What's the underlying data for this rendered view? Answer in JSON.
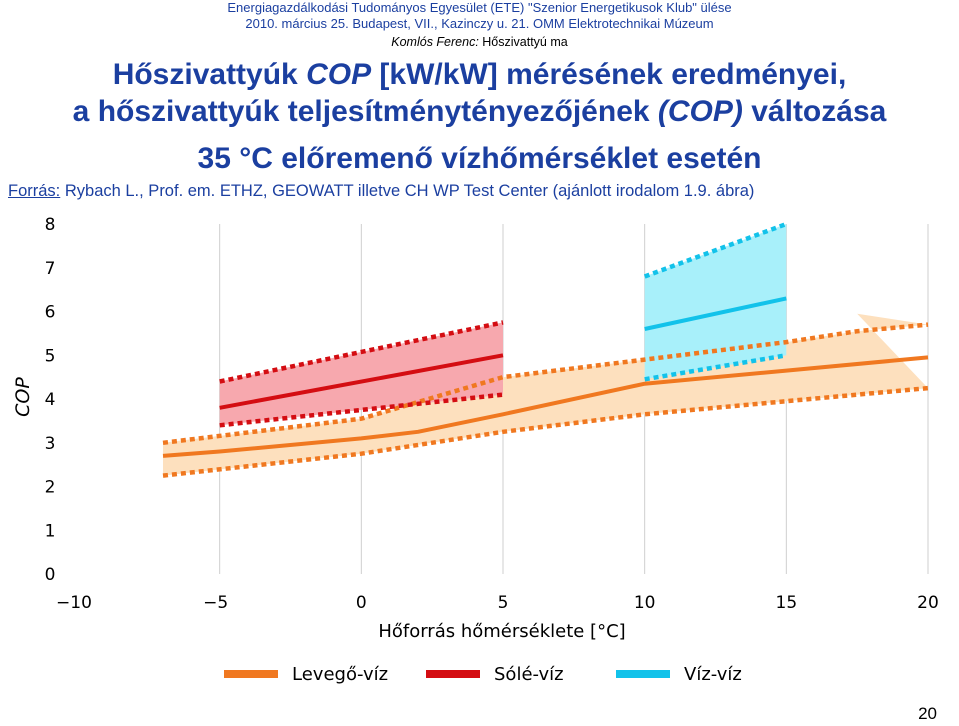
{
  "header": {
    "line1": "Energiagazdálkodási Tudományos Egyesület (ETE) \"Szenior Energetikusok Klub\" ülése",
    "line2": "2010. március 25. Budapest, VII., Kazinczy u. 21. OMM Elektrotechnikai Múzeum",
    "author": "Komlós Ferenc:",
    "topic": "Hőszivattyú ma"
  },
  "title": {
    "line1_a": "Hőszivattyúk ",
    "line1_b": "COP",
    "line1_c": " [kW/kW] mérésének eredményei,",
    "line2_a": "a hőszivattyúk teljesítménytényezőjének ",
    "line2_b": "(COP)",
    "line2_c": " változása",
    "line3": "35 °C előremenő vízhőmérséklet esetén"
  },
  "source": {
    "label": "Forrás:",
    "text": " Rybach L., Prof. em. ETHZ, GEOWATT illetve CH WP Test Center (ajánlott irodalom 1.9. ábra)"
  },
  "page_number": "20",
  "colors": {
    "levego": "#f07820",
    "levego_band": "#fde0be",
    "sole": "#d40d12",
    "sole_band": "#f7a8ae",
    "viz": "#12c2ea",
    "viz_band": "#a8f0fa"
  },
  "chart_data": {
    "type": "line",
    "xlabel": "Hőforrás hőmérséklete [°C]",
    "ylabel": "COP",
    "xlim": [
      -10,
      20
    ],
    "ylim": [
      0,
      8
    ],
    "x_ticks": [
      "−10",
      "−5",
      "0",
      "5",
      "10",
      "15",
      "20"
    ],
    "y_ticks": [
      "0",
      "1",
      "2",
      "3",
      "4",
      "5",
      "6",
      "7",
      "8"
    ],
    "grid": "vertical",
    "legend_position": "bottom",
    "series": [
      {
        "name": "Levegő-víz",
        "color_key": "levego",
        "mean": [
          [
            -7,
            2.7
          ],
          [
            -5,
            2.8
          ],
          [
            0,
            3.1
          ],
          [
            2,
            3.25
          ],
          [
            5,
            3.65
          ],
          [
            10,
            4.35
          ],
          [
            15,
            4.65
          ],
          [
            20,
            4.95
          ]
        ],
        "upper": [
          [
            -7,
            3.0
          ],
          [
            0,
            3.55
          ],
          [
            5,
            4.5
          ],
          [
            10,
            4.9
          ],
          [
            15,
            5.3
          ],
          [
            17.5,
            5.55
          ],
          [
            20,
            5.7
          ]
        ],
        "lower": [
          [
            -7,
            2.25
          ],
          [
            0,
            2.75
          ],
          [
            5,
            3.25
          ],
          [
            10,
            3.65
          ],
          [
            15,
            3.95
          ],
          [
            20,
            4.25
          ]
        ],
        "band_extra": [
          [
            17.5,
            5.95
          ],
          [
            20,
            4.25
          ]
        ]
      },
      {
        "name": "Sólé-víz",
        "color_key": "sole",
        "mean": [
          [
            -5,
            3.8
          ],
          [
            5,
            5.0
          ]
        ],
        "upper": [
          [
            -5,
            4.4
          ],
          [
            5,
            5.75
          ]
        ],
        "lower": [
          [
            -5,
            3.4
          ],
          [
            5,
            4.1
          ]
        ]
      },
      {
        "name": "Víz-víz",
        "color_key": "viz",
        "mean": [
          [
            10,
            5.6
          ],
          [
            15,
            6.3
          ]
        ],
        "upper": [
          [
            10,
            6.8
          ],
          [
            15,
            8.0
          ]
        ],
        "lower": [
          [
            10,
            4.45
          ],
          [
            15,
            5.0
          ]
        ]
      }
    ]
  }
}
